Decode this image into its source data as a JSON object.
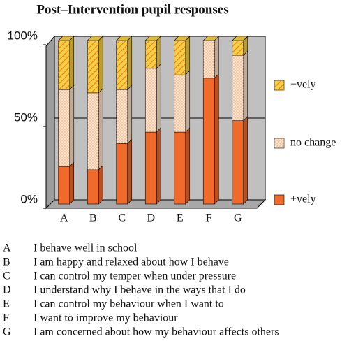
{
  "chart_data": {
    "type": "stacked_bar",
    "title": "Post–Intervention pupil responses",
    "categories": [
      "A",
      "B",
      "C",
      "D",
      "E",
      "F",
      "G"
    ],
    "series": [
      {
        "name": "+vely",
        "color": "#f06a2c",
        "values": [
          23,
          21,
          37,
          44,
          44,
          77,
          51
        ]
      },
      {
        "name": "no change",
        "color": "#fde2cc",
        "pattern": "dots",
        "values": [
          47,
          47,
          33,
          39,
          35,
          23,
          40
        ]
      },
      {
        "name": "−vely",
        "color": "#f7cf45",
        "pattern": "hatch",
        "values": [
          30,
          32,
          30,
          17,
          21,
          0,
          9
        ]
      }
    ],
    "ylim": [
      0,
      100
    ],
    "yticks": [
      {
        "value": 0,
        "label": "0%"
      },
      {
        "value": 50,
        "label": "50%"
      },
      {
        "value": 100,
        "label": "100%"
      }
    ],
    "grid": true,
    "legend": "right",
    "descriptions": [
      "I behave well in school",
      "I am happy and relaxed about how I behave",
      "I can control my temper when under pressure",
      "I understand why I behave in the ways that I do",
      "I can control my behaviour when I want to",
      "I want to improve my behaviour",
      "I am concerned about how my behaviour affects others"
    ]
  }
}
